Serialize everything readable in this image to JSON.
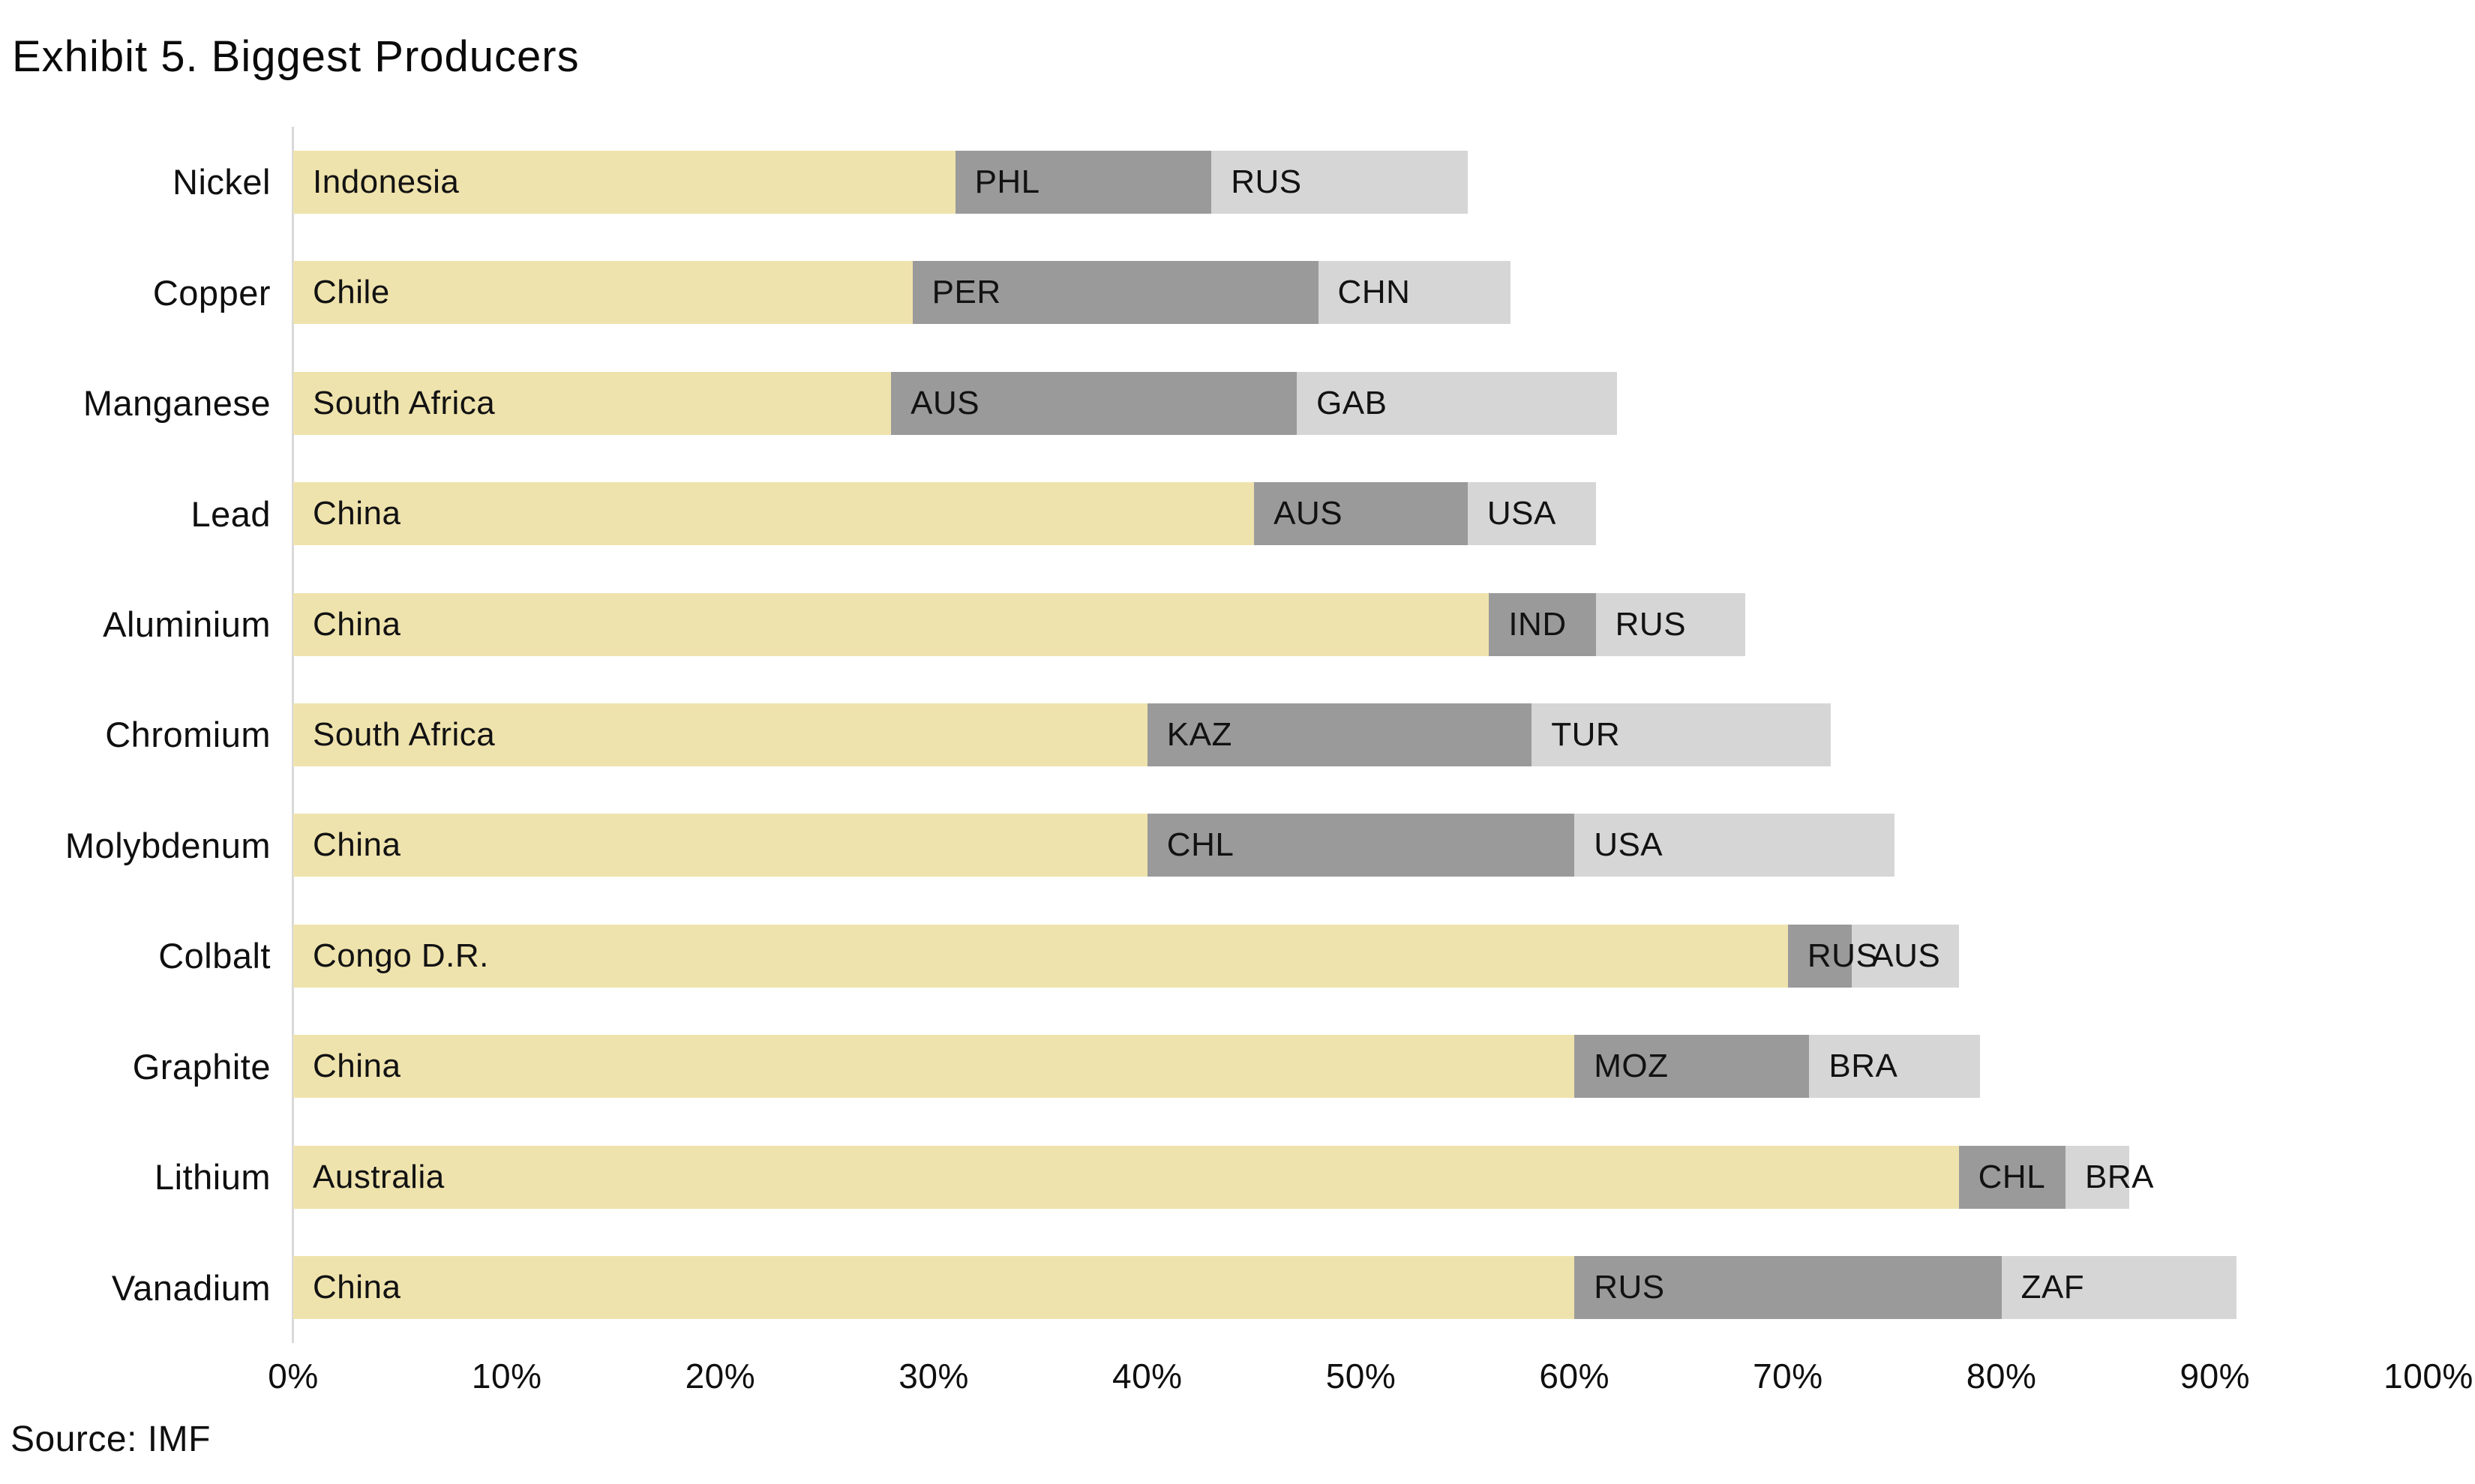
{
  "page": {
    "title": "Exhibit 5. Biggest Producers",
    "source": "Source: IMF"
  },
  "chart_data": {
    "type": "bar",
    "orientation": "horizontal_stacked",
    "title": "Exhibit 5. Biggest Producers",
    "source": "Source: IMF",
    "xlabel": "",
    "ylabel": "",
    "xlim": [
      0,
      100
    ],
    "x_ticks": [
      "0%",
      "10%",
      "20%",
      "30%",
      "40%",
      "50%",
      "60%",
      "70%",
      "80%",
      "90%",
      "100%"
    ],
    "grid": false,
    "legend": false,
    "segment_colors": [
      "#efe3ad",
      "#9a9a9a",
      "#d6d6d6"
    ],
    "value_unit": "%",
    "rows": [
      {
        "category": "Nickel",
        "segments": [
          {
            "label": "Indonesia",
            "value": 31
          },
          {
            "label": "PHL",
            "value": 12
          },
          {
            "label": "RUS",
            "value": 12
          }
        ]
      },
      {
        "category": "Copper",
        "segments": [
          {
            "label": "Chile",
            "value": 29
          },
          {
            "label": "PER",
            "value": 19
          },
          {
            "label": "CHN",
            "value": 9
          }
        ]
      },
      {
        "category": "Manganese",
        "segments": [
          {
            "label": "South Africa",
            "value": 28
          },
          {
            "label": "AUS",
            "value": 19
          },
          {
            "label": "GAB",
            "value": 15
          }
        ]
      },
      {
        "category": "Lead",
        "segments": [
          {
            "label": "China",
            "value": 45
          },
          {
            "label": "AUS",
            "value": 10
          },
          {
            "label": "USA",
            "value": 6
          }
        ]
      },
      {
        "category": "Aluminium",
        "segments": [
          {
            "label": "China",
            "value": 56
          },
          {
            "label": "IND",
            "value": 5
          },
          {
            "label": "RUS",
            "value": 7
          }
        ]
      },
      {
        "category": "Chromium",
        "segments": [
          {
            "label": "South Africa",
            "value": 40
          },
          {
            "label": "KAZ",
            "value": 18
          },
          {
            "label": "TUR",
            "value": 14
          }
        ]
      },
      {
        "category": "Molybdenum",
        "segments": [
          {
            "label": "China",
            "value": 40
          },
          {
            "label": "CHL",
            "value": 20
          },
          {
            "label": "USA",
            "value": 15
          }
        ]
      },
      {
        "category": "Colbalt",
        "segments": [
          {
            "label": "Congo D.R.",
            "value": 70
          },
          {
            "label": "RUS",
            "value": 3
          },
          {
            "label": "AUS",
            "value": 5
          }
        ]
      },
      {
        "category": "Graphite",
        "segments": [
          {
            "label": "China",
            "value": 60
          },
          {
            "label": "MOZ",
            "value": 11
          },
          {
            "label": "BRA",
            "value": 8
          }
        ]
      },
      {
        "category": "Lithium",
        "segments": [
          {
            "label": "Australia",
            "value": 78
          },
          {
            "label": "CHL",
            "value": 5
          },
          {
            "label": "BRA",
            "value": 3
          }
        ]
      },
      {
        "category": "Vanadium",
        "segments": [
          {
            "label": "China",
            "value": 60
          },
          {
            "label": "RUS",
            "value": 20
          },
          {
            "label": "ZAF",
            "value": 11
          }
        ]
      }
    ]
  }
}
